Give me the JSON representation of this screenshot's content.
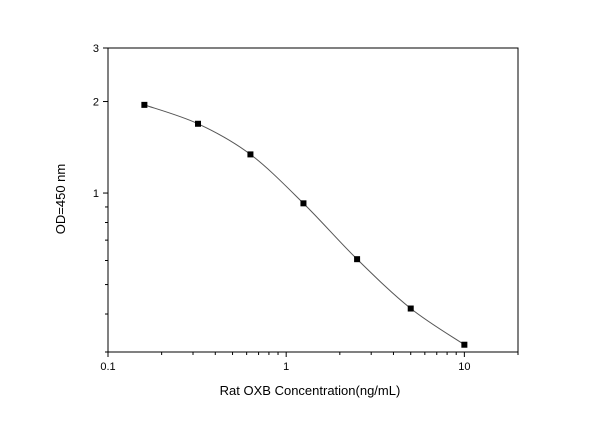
{
  "chart_data": {
    "type": "line",
    "xscale": "log",
    "yscale": "log",
    "xlim": [
      0.1,
      20
    ],
    "ylim": [
      0.3,
      3
    ],
    "xlabel": "Rat OXB  Concentration(ng/mL)",
    "ylabel": "OD=450 nm",
    "x_ticks": [
      {
        "value": 0.1,
        "label": "0.1"
      },
      {
        "value": 1,
        "label": "1"
      },
      {
        "value": 10,
        "label": "10"
      }
    ],
    "y_ticks": [
      {
        "value": 1,
        "label": "1"
      },
      {
        "value": 2,
        "label": "2"
      },
      {
        "value": 3,
        "label": "3"
      }
    ],
    "series": [
      {
        "marker": "square",
        "color": "#000000",
        "x": [
          0.16,
          0.32,
          0.63,
          1.25,
          2.5,
          5,
          10
        ],
        "y": [
          1.95,
          1.69,
          1.34,
          0.925,
          0.606,
          0.417,
          0.317
        ]
      }
    ],
    "grid": false,
    "legend": "none"
  }
}
